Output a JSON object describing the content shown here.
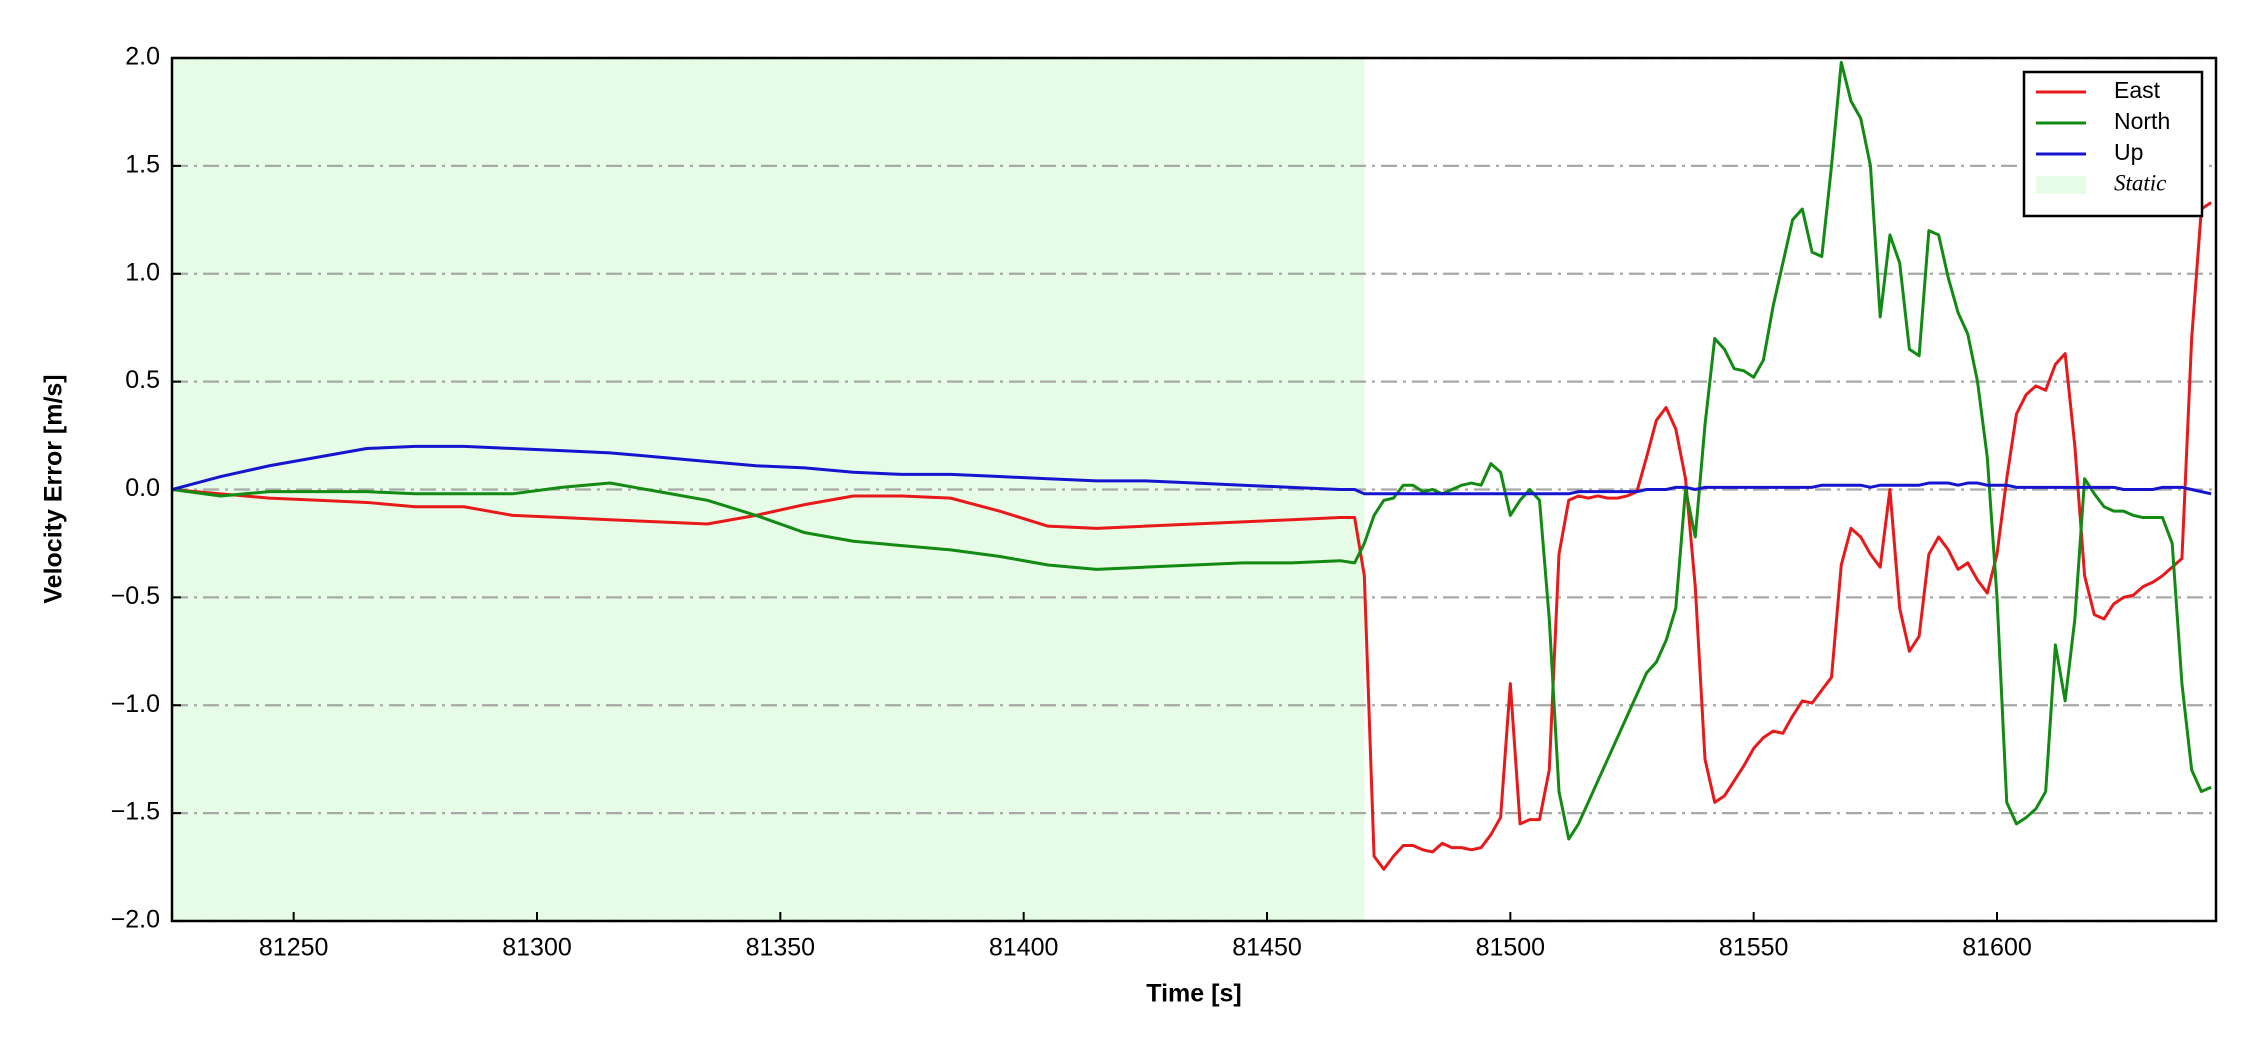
{
  "chart_data": {
    "type": "line",
    "xlabel": "Time [s]",
    "ylabel": "Velocity Error [m/s]",
    "xlim": [
      81225,
      81645
    ],
    "ylim": [
      -2,
      2
    ],
    "xticks": [
      81250,
      81300,
      81350,
      81400,
      81450,
      81500,
      81550,
      81600
    ],
    "yticks": [
      {
        "value": -2,
        "label": "−2.0"
      },
      {
        "value": -1.5,
        "label": "−1.5"
      },
      {
        "value": -1,
        "label": "−1.0"
      },
      {
        "value": -0.5,
        "label": "−0.5"
      },
      {
        "value": 0,
        "label": "0.0"
      },
      {
        "value": 0.5,
        "label": "0.5"
      },
      {
        "value": 1,
        "label": "1.0"
      },
      {
        "value": 1.5,
        "label": "1.5"
      },
      {
        "value": 2,
        "label": "2.0"
      }
    ],
    "grid": true,
    "legend": "upper right",
    "static_span": {
      "name": "Static",
      "range": [
        81225,
        81470
      ],
      "color": "#e6fce6"
    },
    "x": [
      81225,
      81235,
      81245,
      81255,
      81265,
      81275,
      81285,
      81295,
      81305,
      81315,
      81325,
      81335,
      81345,
      81355,
      81365,
      81375,
      81385,
      81395,
      81405,
      81415,
      81425,
      81435,
      81445,
      81455,
      81465,
      81468,
      81470,
      81472,
      81474,
      81476,
      81478,
      81480,
      81482,
      81484,
      81486,
      81488,
      81490,
      81492,
      81494,
      81496,
      81498,
      81500,
      81502,
      81504,
      81506,
      81508,
      81510,
      81512,
      81514,
      81516,
      81518,
      81520,
      81522,
      81524,
      81526,
      81528,
      81530,
      81532,
      81534,
      81536,
      81538,
      81540,
      81542,
      81544,
      81546,
      81548,
      81550,
      81552,
      81554,
      81556,
      81558,
      81560,
      81562,
      81564,
      81566,
      81568,
      81570,
      81572,
      81574,
      81576,
      81578,
      81580,
      81582,
      81584,
      81586,
      81588,
      81590,
      81592,
      81594,
      81596,
      81598,
      81600,
      81602,
      81604,
      81606,
      81608,
      81610,
      81612,
      81614,
      81616,
      81618,
      81620,
      81622,
      81624,
      81626,
      81628,
      81630,
      81632,
      81634,
      81636,
      81638,
      81640,
      81642,
      81644
    ],
    "series": [
      {
        "name": "East",
        "color": "#e8191b",
        "values": [
          0,
          -0.02,
          -0.04,
          -0.05,
          -0.06,
          -0.08,
          -0.08,
          -0.12,
          -0.13,
          -0.14,
          -0.15,
          -0.16,
          -0.12,
          -0.07,
          -0.03,
          -0.03,
          -0.04,
          -0.1,
          -0.17,
          -0.18,
          -0.17,
          -0.16,
          -0.15,
          -0.14,
          -0.13,
          -0.13,
          -0.4,
          -1.7,
          -1.76,
          -1.7,
          -1.65,
          -1.65,
          -1.67,
          -1.68,
          -1.64,
          -1.66,
          -1.66,
          -1.67,
          -1.66,
          -1.6,
          -1.52,
          -0.9,
          -1.55,
          -1.53,
          -1.53,
          -1.3,
          -0.3,
          -0.05,
          -0.03,
          -0.04,
          -0.03,
          -0.04,
          -0.04,
          -0.03,
          -0.01,
          0.15,
          0.32,
          0.38,
          0.28,
          0.05,
          -0.45,
          -1.25,
          -1.45,
          -1.42,
          -1.35,
          -1.28,
          -1.2,
          -1.15,
          -1.12,
          -1.13,
          -1.05,
          -0.98,
          -0.99,
          -0.93,
          -0.87,
          -0.35,
          -0.18,
          -0.22,
          -0.3,
          -0.36,
          0.0,
          -0.55,
          -0.75,
          -0.68,
          -0.3,
          -0.22,
          -0.28,
          -0.37,
          -0.34,
          -0.42,
          -0.48,
          -0.3,
          0.05,
          0.35,
          0.44,
          0.48,
          0.46,
          0.58,
          0.63,
          0.2,
          -0.4,
          -0.58,
          -0.6,
          -0.53,
          -0.5,
          -0.49,
          -0.45,
          -0.43,
          -0.4,
          -0.36,
          -0.32,
          0.7,
          1.3,
          1.33
        ]
      },
      {
        "name": "North",
        "color": "#138a13",
        "values": [
          0,
          -0.03,
          -0.01,
          -0.01,
          -0.01,
          -0.02,
          -0.02,
          -0.02,
          0.01,
          0.03,
          -0.01,
          -0.05,
          -0.12,
          -0.2,
          -0.24,
          -0.26,
          -0.28,
          -0.31,
          -0.35,
          -0.37,
          -0.36,
          -0.35,
          -0.34,
          -0.34,
          -0.33,
          -0.34,
          -0.25,
          -0.12,
          -0.05,
          -0.04,
          0.02,
          0.02,
          -0.01,
          0.0,
          -0.02,
          0.0,
          0.02,
          0.03,
          0.02,
          0.12,
          0.08,
          -0.12,
          -0.05,
          0.0,
          -0.05,
          -0.6,
          -1.4,
          -1.62,
          -1.55,
          -1.45,
          -1.35,
          -1.25,
          -1.15,
          -1.05,
          -0.95,
          -0.85,
          -0.8,
          -0.7,
          -0.55,
          0.0,
          -0.22,
          0.3,
          0.7,
          0.65,
          0.56,
          0.55,
          0.52,
          0.6,
          0.85,
          1.05,
          1.25,
          1.3,
          1.1,
          1.08,
          1.5,
          1.98,
          1.8,
          1.72,
          1.5,
          0.8,
          1.18,
          1.05,
          0.65,
          0.62,
          1.2,
          1.18,
          0.98,
          0.82,
          0.72,
          0.5,
          0.15,
          -0.5,
          -1.45,
          -1.55,
          -1.52,
          -1.48,
          -1.4,
          -0.72,
          -0.98,
          -0.6,
          0.05,
          -0.02,
          -0.08,
          -0.1,
          -0.1,
          -0.12,
          -0.13,
          -0.13,
          -0.13,
          -0.25,
          -0.9,
          -1.3,
          -1.4,
          -1.38
        ]
      },
      {
        "name": "Up",
        "color": "#1515d0",
        "values": [
          0,
          0.06,
          0.11,
          0.15,
          0.19,
          0.2,
          0.2,
          0.19,
          0.18,
          0.17,
          0.15,
          0.13,
          0.11,
          0.1,
          0.08,
          0.07,
          0.07,
          0.06,
          0.05,
          0.04,
          0.04,
          0.03,
          0.02,
          0.01,
          0.0,
          0.0,
          -0.02,
          -0.02,
          -0.02,
          -0.02,
          -0.02,
          -0.02,
          -0.02,
          -0.02,
          -0.02,
          -0.02,
          -0.02,
          -0.02,
          -0.02,
          -0.02,
          -0.02,
          -0.02,
          -0.02,
          -0.02,
          -0.02,
          -0.02,
          -0.02,
          -0.02,
          -0.01,
          -0.01,
          -0.01,
          -0.01,
          -0.01,
          -0.01,
          -0.01,
          0,
          0,
          0,
          0.01,
          0.01,
          0,
          0.01,
          0.01,
          0.01,
          0.01,
          0.01,
          0.01,
          0.01,
          0.01,
          0.01,
          0.01,
          0.01,
          0.01,
          0.02,
          0.02,
          0.02,
          0.02,
          0.02,
          0.01,
          0.02,
          0.02,
          0.02,
          0.02,
          0.02,
          0.03,
          0.03,
          0.03,
          0.02,
          0.03,
          0.03,
          0.02,
          0.02,
          0.02,
          0.01,
          0.01,
          0.01,
          0.01,
          0.01,
          0.01,
          0.01,
          0.01,
          0.01,
          0.01,
          0.01,
          0,
          0,
          0,
          0,
          0.01,
          0.01,
          0.01,
          0,
          -0.01,
          -0.02
        ]
      }
    ]
  }
}
